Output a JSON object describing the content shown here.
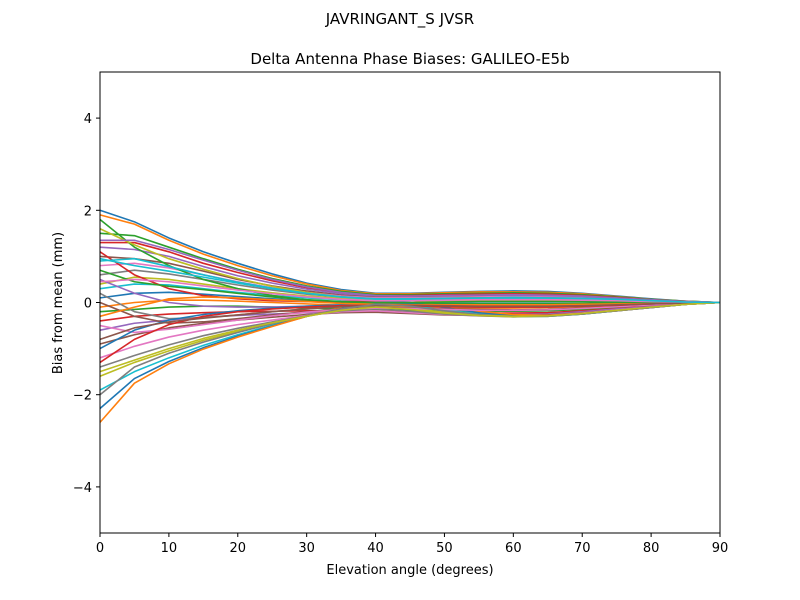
{
  "chart_data": {
    "type": "line",
    "suptitle": "JAVRINGANT_S    JVSR",
    "title": "Delta Antenna Phase Biases: GALILEO-E5b",
    "xlabel": "Elevation angle (degrees)",
    "ylabel": "Bias from mean (mm)",
    "xlim": [
      0,
      90
    ],
    "ylim": [
      -5,
      5
    ],
    "xticks": [
      0,
      10,
      20,
      30,
      40,
      50,
      60,
      70,
      80,
      90
    ],
    "xtick_labels": [
      "0",
      "10",
      "20",
      "30",
      "40",
      "50",
      "60",
      "70",
      "80",
      "90"
    ],
    "yticks": [
      -4,
      -2,
      0,
      2,
      4
    ],
    "ytick_labels": [
      "−4",
      "−2",
      "0",
      "2",
      "4"
    ],
    "grid": false,
    "x": [
      0,
      5,
      10,
      15,
      20,
      25,
      30,
      35,
      40,
      45,
      50,
      55,
      60,
      65,
      70,
      75,
      80,
      85,
      90
    ],
    "colors": [
      "#1f77b4",
      "#ff7f0e",
      "#2ca02c",
      "#d62728",
      "#9467bd",
      "#8c564b",
      "#e377c2",
      "#7f7f7f",
      "#bcbd22",
      "#17becf"
    ],
    "series": [
      {
        "values": [
          2.0,
          1.75,
          1.4,
          1.1,
          0.85,
          0.62,
          0.42,
          0.28,
          0.2,
          0.2,
          0.22,
          0.24,
          0.25,
          0.24,
          0.2,
          0.14,
          0.08,
          0.03,
          0.0
        ]
      },
      {
        "values": [
          1.9,
          1.7,
          1.35,
          1.05,
          0.8,
          0.58,
          0.4,
          0.26,
          0.19,
          0.19,
          0.21,
          0.23,
          0.23,
          0.22,
          0.19,
          0.13,
          0.07,
          0.03,
          0.0
        ]
      },
      {
        "values": [
          1.5,
          1.45,
          1.2,
          0.95,
          0.72,
          0.52,
          0.36,
          0.24,
          0.17,
          0.17,
          0.19,
          0.2,
          0.21,
          0.2,
          0.17,
          0.12,
          0.07,
          0.03,
          0.0
        ]
      },
      {
        "values": [
          1.3,
          1.3,
          1.1,
          0.85,
          0.65,
          0.47,
          0.32,
          0.21,
          0.15,
          0.15,
          0.17,
          0.18,
          0.19,
          0.18,
          0.15,
          0.11,
          0.06,
          0.02,
          0.0
        ]
      },
      {
        "values": [
          1.2,
          1.15,
          1.0,
          0.78,
          0.58,
          0.42,
          0.29,
          0.19,
          0.13,
          0.13,
          0.15,
          0.16,
          0.17,
          0.16,
          0.14,
          0.1,
          0.06,
          0.02,
          0.0
        ]
      },
      {
        "values": [
          1.0,
          0.95,
          0.85,
          0.68,
          0.5,
          0.36,
          0.25,
          0.16,
          0.11,
          0.11,
          0.13,
          0.14,
          0.15,
          0.14,
          0.12,
          0.09,
          0.05,
          0.02,
          0.0
        ]
      },
      {
        "values": [
          0.8,
          0.85,
          0.75,
          0.6,
          0.45,
          0.32,
          0.22,
          0.14,
          0.1,
          0.1,
          0.11,
          0.12,
          0.13,
          0.12,
          0.11,
          0.08,
          0.04,
          0.02,
          0.0
        ]
      },
      {
        "values": [
          0.6,
          0.7,
          0.62,
          0.5,
          0.38,
          0.27,
          0.18,
          0.12,
          0.08,
          0.08,
          0.09,
          0.1,
          0.11,
          0.1,
          0.09,
          0.06,
          0.04,
          0.01,
          0.0
        ]
      },
      {
        "values": [
          0.4,
          0.55,
          0.5,
          0.4,
          0.3,
          0.21,
          0.14,
          0.09,
          0.06,
          0.06,
          0.07,
          0.08,
          0.08,
          0.08,
          0.07,
          0.05,
          0.03,
          0.01,
          0.0
        ]
      },
      {
        "values": [
          0.3,
          0.4,
          0.38,
          0.3,
          0.22,
          0.15,
          0.1,
          0.06,
          0.04,
          0.04,
          0.05,
          0.05,
          0.06,
          0.05,
          0.05,
          0.03,
          0.02,
          0.01,
          0.0
        ]
      },
      {
        "values": [
          0.1,
          0.2,
          0.22,
          0.18,
          0.13,
          0.08,
          0.04,
          0.01,
          -0.01,
          -0.02,
          -0.02,
          -0.02,
          -0.02,
          -0.02,
          -0.02,
          -0.01,
          -0.01,
          0.0,
          0.0
        ]
      },
      {
        "values": [
          -0.1,
          0.0,
          0.05,
          0.05,
          0.03,
          0.0,
          -0.03,
          -0.06,
          -0.08,
          -0.1,
          -0.11,
          -0.12,
          -0.12,
          -0.11,
          -0.09,
          -0.06,
          -0.04,
          -0.02,
          0.0
        ]
      },
      {
        "values": [
          -0.2,
          -0.15,
          -0.1,
          -0.08,
          -0.08,
          -0.1,
          -0.12,
          -0.14,
          -0.15,
          -0.17,
          -0.18,
          -0.19,
          -0.19,
          -0.18,
          -0.15,
          -0.11,
          -0.07,
          -0.03,
          0.0
        ]
      },
      {
        "values": [
          -0.4,
          -0.3,
          -0.25,
          -0.22,
          -0.2,
          -0.19,
          -0.18,
          -0.18,
          -0.19,
          -0.2,
          -0.22,
          -0.23,
          -0.23,
          -0.22,
          -0.18,
          -0.13,
          -0.08,
          -0.03,
          0.0
        ]
      },
      {
        "values": [
          -0.6,
          -0.45,
          -0.38,
          -0.32,
          -0.28,
          -0.25,
          -0.22,
          -0.2,
          -0.21,
          -0.23,
          -0.25,
          -0.26,
          -0.26,
          -0.25,
          -0.2,
          -0.14,
          -0.09,
          -0.04,
          0.0
        ]
      },
      {
        "values": [
          -0.9,
          -0.7,
          -0.55,
          -0.45,
          -0.38,
          -0.32,
          -0.26,
          -0.22,
          -0.21,
          -0.24,
          -0.27,
          -0.28,
          -0.29,
          -0.27,
          -0.22,
          -0.16,
          -0.1,
          -0.04,
          0.0
        ]
      },
      {
        "values": [
          -1.2,
          -0.95,
          -0.75,
          -0.6,
          -0.48,
          -0.38,
          -0.28,
          -0.2,
          -0.18,
          -0.22,
          -0.26,
          -0.29,
          -0.3,
          -0.28,
          -0.23,
          -0.16,
          -0.1,
          -0.04,
          0.0
        ]
      },
      {
        "values": [
          -1.4,
          -1.15,
          -0.92,
          -0.72,
          -0.56,
          -0.42,
          -0.29,
          -0.18,
          -0.14,
          -0.19,
          -0.25,
          -0.29,
          -0.31,
          -0.29,
          -0.24,
          -0.17,
          -0.1,
          -0.04,
          0.0
        ]
      },
      {
        "values": [
          -1.6,
          -1.3,
          -1.05,
          -0.82,
          -0.63,
          -0.46,
          -0.3,
          -0.16,
          -0.08,
          -0.13,
          -0.21,
          -0.28,
          -0.31,
          -0.3,
          -0.25,
          -0.18,
          -0.11,
          -0.04,
          0.0
        ]
      },
      {
        "values": [
          -1.9,
          -1.5,
          -1.2,
          -0.93,
          -0.7,
          -0.49,
          -0.3,
          -0.13,
          -0.02,
          -0.06,
          -0.16,
          -0.25,
          -0.3,
          -0.3,
          -0.25,
          -0.18,
          -0.11,
          -0.04,
          0.0
        ]
      },
      {
        "values": [
          -2.3,
          -1.65,
          -1.28,
          -0.98,
          -0.73,
          -0.51,
          -0.3,
          -0.11,
          0.03,
          0.0,
          -0.11,
          -0.22,
          -0.28,
          -0.29,
          -0.25,
          -0.18,
          -0.11,
          -0.04,
          0.0
        ]
      },
      {
        "values": [
          -2.6,
          -1.75,
          -1.33,
          -1.01,
          -0.75,
          -0.52,
          -0.3,
          -0.1,
          0.06,
          0.05,
          -0.07,
          -0.19,
          -0.26,
          -0.28,
          -0.24,
          -0.18,
          -0.11,
          -0.04,
          0.0
        ]
      },
      {
        "values": [
          1.8,
          1.2,
          0.8,
          0.5,
          0.3,
          0.15,
          0.05,
          0.0,
          -0.02,
          -0.03,
          -0.03,
          -0.03,
          -0.03,
          -0.03,
          -0.02,
          -0.02,
          -0.01,
          0.0,
          0.0
        ]
      },
      {
        "values": [
          1.1,
          0.6,
          0.3,
          0.15,
          0.08,
          0.04,
          0.02,
          0.02,
          0.03,
          0.05,
          0.07,
          0.08,
          0.08,
          0.07,
          0.06,
          0.04,
          0.02,
          0.01,
          0.0
        ]
      },
      {
        "values": [
          0.5,
          0.2,
          0.0,
          -0.08,
          -0.1,
          -0.1,
          -0.08,
          -0.06,
          -0.05,
          -0.05,
          -0.06,
          -0.07,
          -0.07,
          -0.07,
          -0.06,
          -0.04,
          -0.02,
          -0.01,
          0.0
        ]
      },
      {
        "values": [
          0.0,
          -0.3,
          -0.45,
          -0.42,
          -0.35,
          -0.27,
          -0.2,
          -0.14,
          -0.11,
          -0.12,
          -0.14,
          -0.15,
          -0.16,
          -0.15,
          -0.12,
          -0.09,
          -0.05,
          -0.02,
          0.0
        ]
      },
      {
        "values": [
          -0.5,
          -0.65,
          -0.58,
          -0.48,
          -0.38,
          -0.29,
          -0.21,
          -0.15,
          -0.12,
          -0.13,
          -0.15,
          -0.17,
          -0.17,
          -0.16,
          -0.13,
          -0.09,
          -0.05,
          -0.02,
          0.0
        ]
      },
      {
        "values": [
          0.2,
          -0.2,
          -0.35,
          -0.33,
          -0.27,
          -0.2,
          -0.14,
          -0.09,
          -0.07,
          -0.07,
          -0.09,
          -0.1,
          -0.1,
          -0.09,
          -0.08,
          -0.06,
          -0.03,
          -0.01,
          0.0
        ]
      },
      {
        "values": [
          1.6,
          1.25,
          0.95,
          0.72,
          0.52,
          0.35,
          0.22,
          0.12,
          0.06,
          0.04,
          0.04,
          0.04,
          0.04,
          0.04,
          0.03,
          0.02,
          0.01,
          0.0,
          0.0
        ]
      },
      {
        "values": [
          0.9,
          0.95,
          0.78,
          0.6,
          0.44,
          0.31,
          0.2,
          0.12,
          0.07,
          0.07,
          0.08,
          0.09,
          0.09,
          0.09,
          0.08,
          0.06,
          0.03,
          0.01,
          0.0
        ]
      },
      {
        "values": [
          -1.0,
          -0.6,
          -0.38,
          -0.26,
          -0.18,
          -0.12,
          -0.08,
          -0.05,
          -0.03,
          -0.04,
          -0.06,
          -0.08,
          -0.09,
          -0.08,
          -0.07,
          -0.05,
          -0.03,
          -0.01,
          0.0
        ]
      },
      {
        "values": [
          -0.3,
          -0.1,
          0.08,
          0.12,
          0.1,
          0.06,
          0.02,
          -0.02,
          -0.04,
          -0.05,
          -0.05,
          -0.05,
          -0.05,
          -0.05,
          -0.04,
          -0.03,
          -0.02,
          -0.01,
          0.0
        ]
      },
      {
        "values": [
          0.7,
          0.45,
          0.35,
          0.28,
          0.2,
          0.12,
          0.06,
          0.02,
          0.0,
          0.0,
          0.01,
          0.02,
          0.02,
          0.02,
          0.02,
          0.01,
          0.01,
          0.0,
          0.0
        ]
      },
      {
        "values": [
          -1.3,
          -0.8,
          -0.48,
          -0.3,
          -0.2,
          -0.14,
          -0.1,
          -0.07,
          -0.06,
          -0.07,
          -0.09,
          -0.1,
          -0.1,
          -0.1,
          -0.08,
          -0.06,
          -0.03,
          -0.01,
          0.0
        ]
      },
      {
        "values": [
          1.35,
          1.35,
          1.15,
          0.92,
          0.7,
          0.5,
          0.34,
          0.22,
          0.15,
          0.14,
          0.15,
          0.16,
          0.16,
          0.15,
          0.13,
          0.09,
          0.05,
          0.02,
          0.0
        ]
      },
      {
        "values": [
          -0.8,
          -0.55,
          -0.42,
          -0.34,
          -0.27,
          -0.2,
          -0.14,
          -0.09,
          -0.06,
          -0.06,
          -0.07,
          -0.08,
          -0.08,
          -0.08,
          -0.07,
          -0.05,
          -0.03,
          -0.01,
          0.0
        ]
      },
      {
        "values": [
          0.45,
          0.5,
          0.45,
          0.36,
          0.27,
          0.19,
          0.12,
          0.07,
          0.04,
          0.04,
          0.05,
          0.06,
          0.06,
          0.06,
          0.05,
          0.04,
          0.02,
          0.01,
          0.0
        ]
      },
      {
        "values": [
          -2.0,
          -1.4,
          -1.1,
          -0.86,
          -0.65,
          -0.46,
          -0.29,
          -0.14,
          -0.04,
          -0.08,
          -0.18,
          -0.26,
          -0.3,
          -0.3,
          -0.25,
          -0.18,
          -0.11,
          -0.04,
          0.0
        ]
      },
      {
        "values": [
          -1.5,
          -1.25,
          -1.0,
          -0.78,
          -0.6,
          -0.44,
          -0.3,
          -0.17,
          -0.1,
          -0.15,
          -0.23,
          -0.28,
          -0.3,
          -0.29,
          -0.24,
          -0.17,
          -0.1,
          -0.04,
          0.0
        ]
      },
      {
        "values": [
          0.95,
          0.8,
          0.68,
          0.55,
          0.42,
          0.3,
          0.2,
          0.12,
          0.08,
          0.08,
          0.09,
          0.1,
          0.11,
          0.1,
          0.09,
          0.07,
          0.04,
          0.01,
          0.0
        ]
      }
    ]
  }
}
